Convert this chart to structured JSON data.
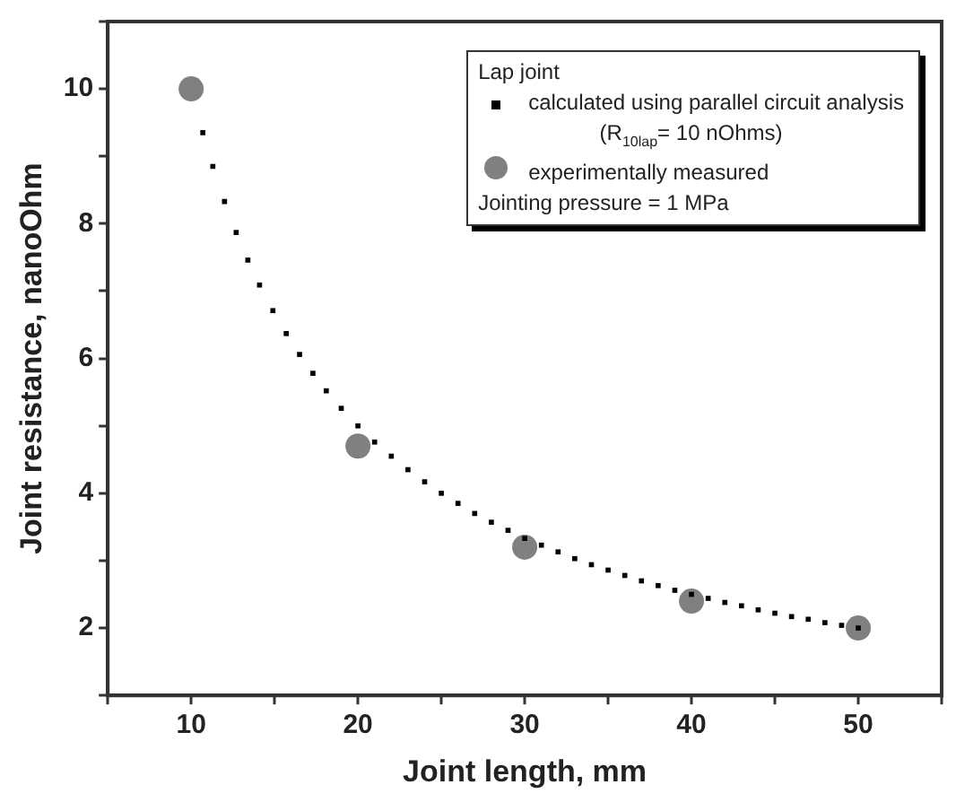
{
  "chart_data": {
    "type": "scatter",
    "xlabel": "Joint length, mm",
    "ylabel": "Joint resistance, nanoOhm",
    "legend_title": "Lap joint",
    "legend": "top right",
    "grid": false,
    "xlim": [
      5,
      55
    ],
    "xticks": [
      {
        "value": 5,
        "label": null
      },
      10,
      {
        "value": 15,
        "label": null
      },
      20,
      {
        "value": 25,
        "label": null
      },
      30,
      {
        "value": 35,
        "label": null
      },
      40,
      {
        "value": 45,
        "label": null
      },
      50,
      {
        "value": 55,
        "label": null
      }
    ],
    "ylim": [
      1,
      11
    ],
    "yticks": [
      {
        "value": 1,
        "label": null
      },
      2,
      {
        "value": 3,
        "label": null
      },
      4,
      {
        "value": 5,
        "label": null
      },
      6,
      {
        "value": 7,
        "label": null
      },
      8,
      {
        "value": 9,
        "label": null
      },
      10,
      {
        "value": 11,
        "label": null
      }
    ],
    "annotations": [
      "(R$_{10lap}$= 10 nOhms)",
      "Jointing pressure = 1 MPa"
    ],
    "series": [
      {
        "name": "calculated using parallel circuit analysis",
        "marker": "square",
        "color": "#000000",
        "x": [
          10.7,
          11.3,
          12,
          12.7,
          13.4,
          14.1,
          14.9,
          15.7,
          16.5,
          17.3,
          18.1,
          19,
          20,
          21,
          22,
          23,
          24,
          25,
          26,
          27,
          28,
          29,
          30,
          31,
          32,
          33,
          34,
          35,
          36,
          37,
          38,
          39,
          40,
          41,
          42,
          43,
          44,
          45,
          46,
          47,
          48,
          49,
          50
        ],
        "values": [
          9.35,
          8.85,
          8.33,
          7.87,
          7.46,
          7.09,
          6.71,
          6.37,
          6.06,
          5.78,
          5.52,
          5.26,
          5.0,
          4.76,
          4.55,
          4.35,
          4.17,
          4.0,
          3.85,
          3.7,
          3.57,
          3.45,
          3.33,
          3.23,
          3.13,
          3.03,
          2.94,
          2.86,
          2.78,
          2.7,
          2.63,
          2.56,
          2.5,
          2.44,
          2.38,
          2.33,
          2.27,
          2.22,
          2.17,
          2.13,
          2.08,
          2.04,
          2.0
        ]
      },
      {
        "name": "experimentally measured",
        "marker": "circle",
        "color": "#808080",
        "x": [
          10,
          20,
          30,
          40,
          50
        ],
        "values": [
          10.0,
          4.7,
          3.2,
          2.4,
          2.0
        ]
      }
    ]
  }
}
